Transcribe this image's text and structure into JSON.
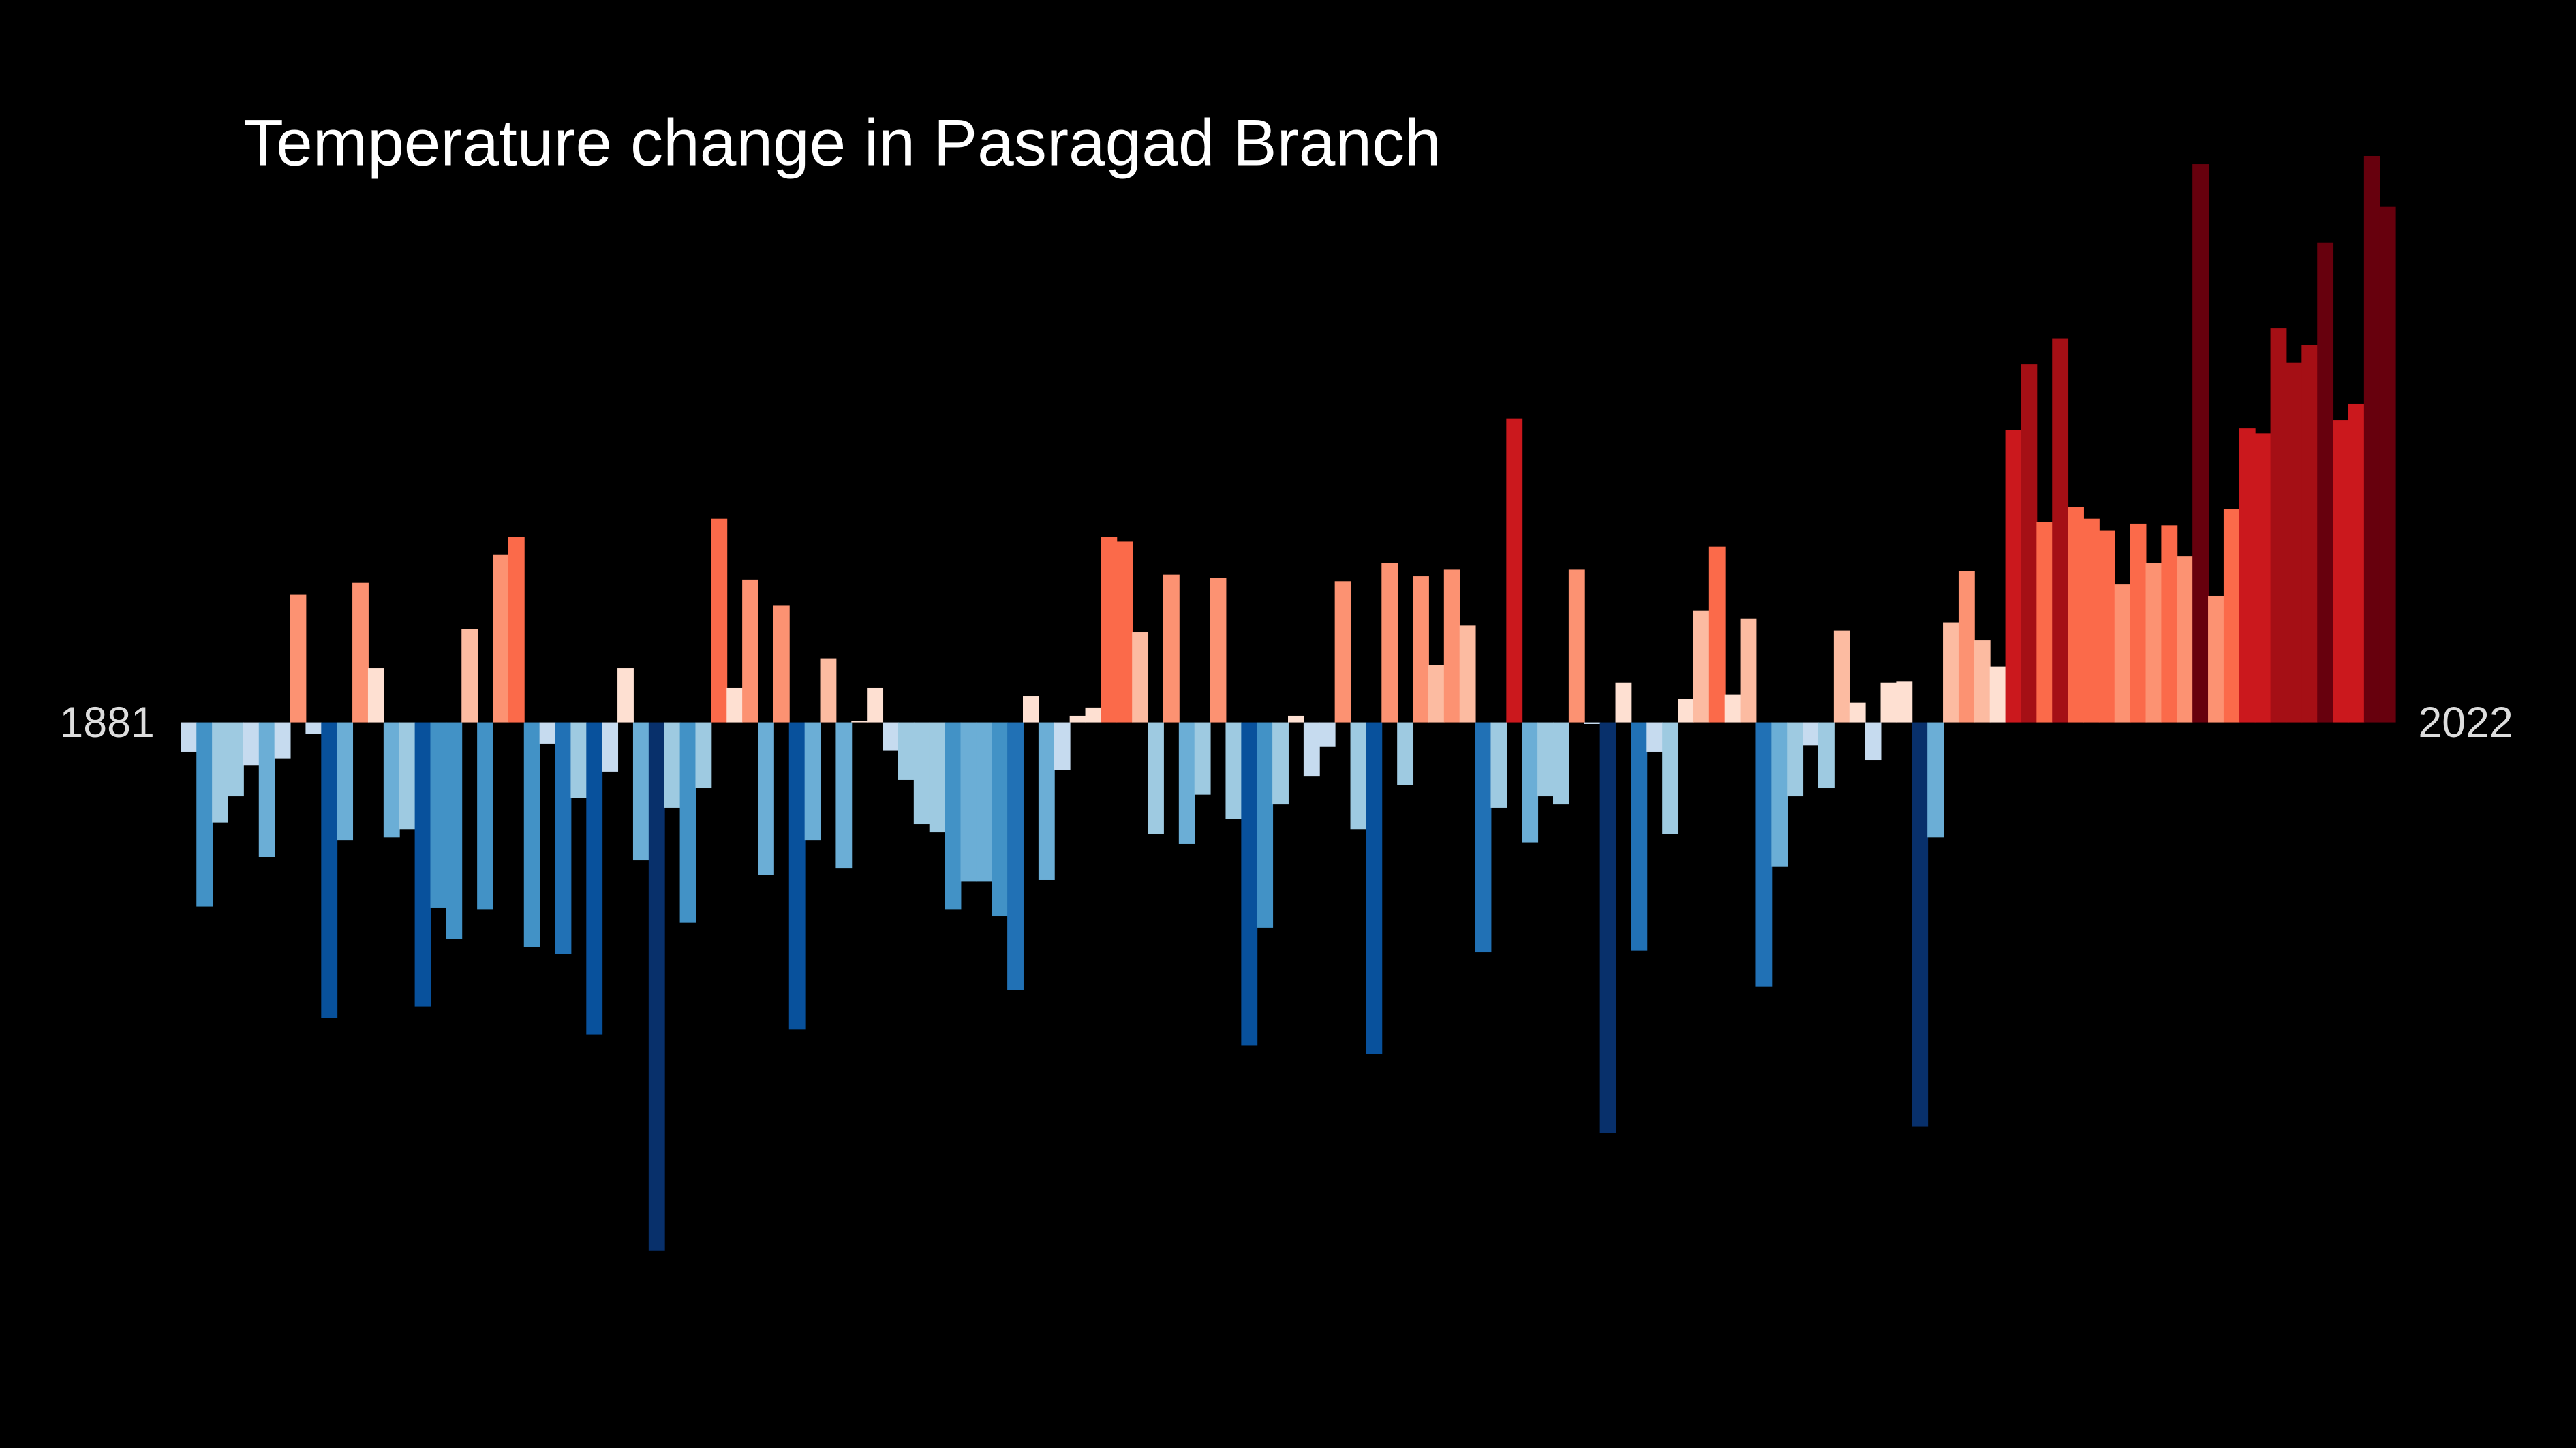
{
  "chart_data": {
    "type": "bar",
    "title": "Temperature change in Pasragad Branch",
    "categories": [
      1881,
      null,
      null,
      null,
      null,
      null,
      null,
      null,
      null,
      null,
      null,
      null,
      null,
      null,
      null,
      null,
      null,
      null,
      null,
      null,
      null,
      null,
      null,
      null,
      null,
      null,
      null,
      null,
      null,
      null,
      null,
      null,
      null,
      null,
      null,
      null,
      null,
      null,
      null,
      null,
      null,
      null,
      null,
      null,
      null,
      null,
      null,
      null,
      null,
      null,
      null,
      null,
      null,
      null,
      null,
      null,
      null,
      null,
      null,
      null,
      null,
      null,
      null,
      null,
      null,
      null,
      null,
      null,
      null,
      null,
      null,
      null,
      null,
      null,
      null,
      null,
      null,
      null,
      null,
      null,
      null,
      null,
      null,
      null,
      null,
      null,
      null,
      null,
      null,
      null,
      null,
      null,
      null,
      null,
      null,
      null,
      null,
      null,
      null,
      null,
      null,
      null,
      null,
      null,
      null,
      null,
      null,
      null,
      null,
      null,
      null,
      null,
      null,
      null,
      null,
      null,
      null,
      null,
      null,
      null,
      null,
      null,
      null,
      null,
      null,
      null,
      null,
      null,
      null,
      null,
      null,
      null,
      null,
      null,
      null,
      null,
      null,
      null,
      null,
      null,
      null,
      2022
    ],
    "values": [
      -0.18,
      -1.12,
      -0.61,
      -0.45,
      -0.26,
      -0.82,
      -0.22,
      0.78,
      -0.07,
      -1.8,
      -0.72,
      0.85,
      0.33,
      -0.7,
      -0.65,
      -1.73,
      -1.13,
      -1.32,
      0.57,
      -1.14,
      1.02,
      1.13,
      -1.37,
      -0.13,
      -1.41,
      -0.46,
      -1.9,
      -0.3,
      0.33,
      -0.84,
      -3.22,
      -0.52,
      -1.22,
      -0.4,
      1.24,
      0.21,
      0.87,
      -0.93,
      0.71,
      -1.87,
      -0.72,
      0.39,
      -0.89,
      0.01,
      0.21,
      -0.17,
      -0.35,
      -0.62,
      -0.67,
      -1.14,
      -0.97,
      -0.97,
      -1.18,
      -1.63,
      0.16,
      -0.96,
      -0.29,
      0.04,
      0.09,
      1.13,
      1.1,
      0.55,
      -0.68,
      0.9,
      -0.74,
      -0.44,
      0.88,
      -0.59,
      -1.97,
      -1.25,
      -0.5,
      0.04,
      -0.33,
      -0.15,
      0.86,
      -0.65,
      -2.02,
      0.97,
      -0.38,
      0.89,
      0.35,
      0.93,
      0.59,
      -1.4,
      -0.52,
      1.85,
      -0.73,
      -0.45,
      -0.5,
      0.93,
      -0.01,
      -2.5,
      0.24,
      -1.39,
      -0.18,
      -0.68,
      0.14,
      0.68,
      1.07,
      0.17,
      0.63,
      -1.61,
      -0.88,
      -0.45,
      -0.14,
      -0.4,
      0.56,
      0.12,
      -0.23,
      0.24,
      0.25,
      -2.46,
      -0.7,
      0.61,
      0.92,
      0.5,
      0.34,
      1.78,
      2.18,
      1.22,
      2.34,
      1.31,
      1.24,
      1.17,
      0.84,
      1.21,
      0.97,
      1.2,
      1.01,
      3.4,
      0.77,
      1.3,
      1.79,
      1.76,
      2.4,
      2.19,
      2.3,
      2.92,
      1.84,
      1.94,
      3.45,
      3.14
    ],
    "colormap": {
      "negative": [
        "#c6dbef",
        "#9ecae1",
        "#6baed6",
        "#4292c6",
        "#2171b5",
        "#08519c",
        "#08306b"
      ],
      "positive": [
        "#fee0d2",
        "#fcbba1",
        "#fc9272",
        "#fb6a4a",
        "#ef3b2c",
        "#cb181d",
        "#a50f15",
        "#67000d"
      ]
    },
    "title_color": "#ffffff",
    "label_color": "#dddddd",
    "background": "#000000"
  }
}
